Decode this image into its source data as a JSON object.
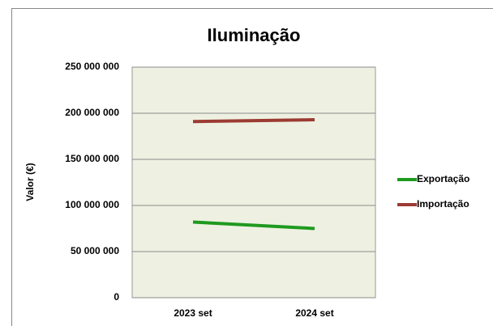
{
  "chart_data": {
    "type": "line",
    "title": "Iluminação",
    "y_label": "Valor (€)",
    "categories": [
      "2023 set",
      "2024 set"
    ],
    "series": [
      {
        "name": "Exportação",
        "color": "#1f9a1f",
        "values": [
          82000000,
          75000000
        ]
      },
      {
        "name": "Importação",
        "color": "#9c3b33",
        "values": [
          191000000,
          193000000
        ]
      }
    ],
    "ylim": [
      0,
      250000000
    ],
    "yticks": [
      {
        "value": 0,
        "label": "0"
      },
      {
        "value": 50000000,
        "label": "50 000 000"
      },
      {
        "value": 100000000,
        "label": "100 000 000"
      },
      {
        "value": 150000000,
        "label": "150 000 000"
      },
      {
        "value": 200000000,
        "label": "200 000 000"
      },
      {
        "value": 250000000,
        "label": "250 000 000"
      }
    ],
    "grid": true,
    "legend": "right"
  }
}
